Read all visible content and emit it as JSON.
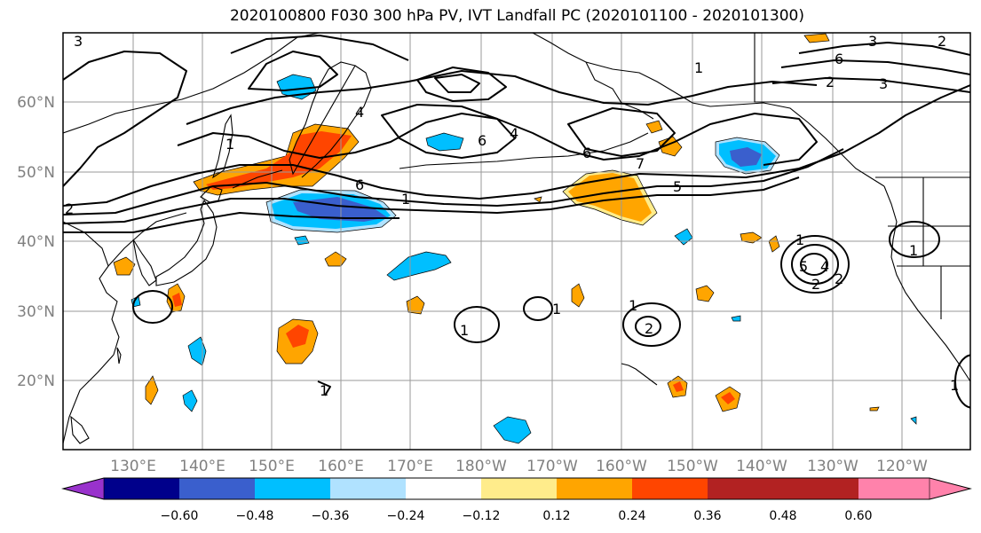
{
  "title": "2020100800 F030 300 hPa PV, IVT Landfall PC (2020101100 - 2020101300)",
  "map": {
    "lon_ticks": [
      "130°E",
      "140°E",
      "150°E",
      "160°E",
      "170°E",
      "180°W",
      "170°W",
      "160°W",
      "150°W",
      "140°W",
      "130°W",
      "120°W"
    ],
    "lat_ticks": [
      "60°N",
      "50°N",
      "40°N",
      "30°N",
      "20°N"
    ],
    "extent": {
      "lon_min": 120,
      "lon_max": 250,
      "lat_min": 10,
      "lat_max": 70
    },
    "contour_labels": [
      "3",
      "2",
      "1",
      "6",
      "4",
      "6",
      "4",
      "1",
      "6",
      "7",
      "5",
      "1",
      "1",
      "2",
      "1",
      "1",
      "2",
      "1",
      "2",
      "1",
      "4",
      "5",
      "3",
      "2",
      "6",
      "2",
      "1",
      "3",
      "1"
    ]
  },
  "colorbar": {
    "colors": [
      "#9932cc",
      "#00008b",
      "#3a5fcd",
      "#00bfff",
      "#b0e2ff",
      "#ffffff",
      "#ffec8b",
      "#ffa500",
      "#ff4500",
      "#b22222",
      "#ff82ab"
    ],
    "labels": [
      "−0.60",
      "−0.48",
      "−0.36",
      "−0.24",
      "−0.12",
      "0.12",
      "0.24",
      "0.36",
      "0.48",
      "0.60"
    ]
  }
}
